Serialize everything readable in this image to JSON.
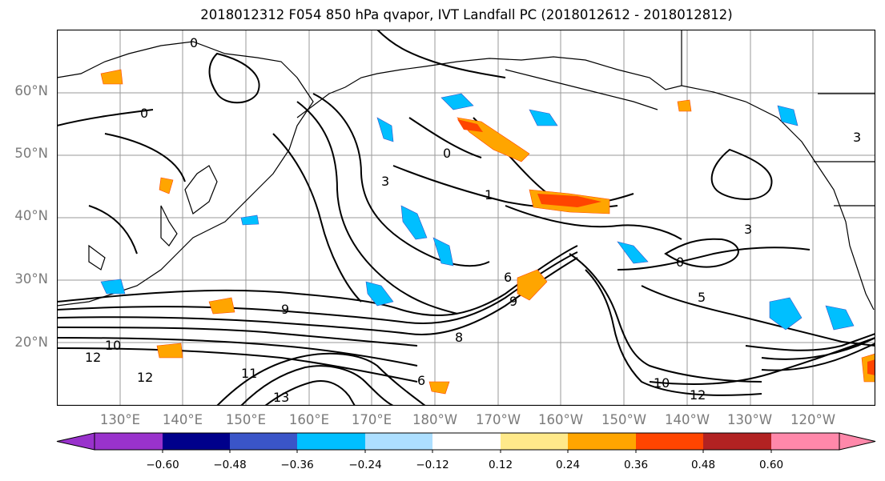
{
  "title": "2018012312 F054 850 hPa qvapor, IVT Landfall PC (2018012612 - 2018012812)",
  "latitude_labels": [
    "60°N",
    "50°N",
    "40°N",
    "30°N",
    "20°N"
  ],
  "longitude_labels": [
    "130°E",
    "140°E",
    "150°E",
    "160°E",
    "170°E",
    "180°W",
    "170°W",
    "160°W",
    "150°W",
    "140°W",
    "130°W",
    "120°W"
  ],
  "contour_labels": [
    "0",
    "0",
    "0",
    "0",
    "1",
    "3",
    "3",
    "3",
    "6",
    "9",
    "10",
    "12",
    "12",
    "11",
    "13",
    "8",
    "5",
    "6",
    "9",
    "10",
    "12"
  ],
  "colorbar": {
    "ticks": [
      "−0.60",
      "−0.48",
      "−0.36",
      "−0.24",
      "−0.12",
      "0.12",
      "0.24",
      "0.36",
      "0.48",
      "0.60"
    ],
    "colors": [
      "#9932CC",
      "#00008B",
      "#3A55C8",
      "#00BFFF",
      "#ADDFFF",
      "#FFFFFF",
      "#FFE98A",
      "#FFA500",
      "#FF4500",
      "#B22222",
      "#FF88AA"
    ]
  },
  "colors": {
    "coast": "#000000",
    "grid": "#9a9a9a",
    "contour": "#000000",
    "negative_anomaly": "#00BFFF",
    "positive_anomaly": "#FFA500"
  }
}
